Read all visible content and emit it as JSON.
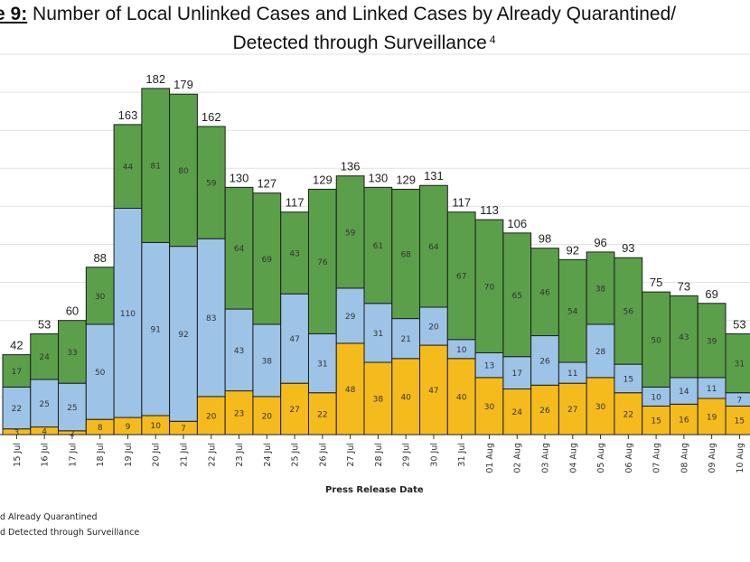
{
  "title": {
    "prefix": "e 9:",
    "line1": " Number of Local Unlinked Cases and Linked Cases by Already Quarantined/",
    "line2": "Detected through Surveillance",
    "footnote": "4"
  },
  "chart_data": {
    "type": "bar",
    "stacked": true,
    "xlabel": "Press Release Date",
    "ylabel": "",
    "ylim": [
      0,
      200
    ],
    "grid": true,
    "categories": [
      "15 Jul",
      "16 Jul",
      "17 Jul",
      "18 Jul",
      "19 Jul",
      "20 Jul",
      "21 Jul",
      "22 Jul",
      "23 Jul",
      "24 Jul",
      "25 Jul",
      "26 Jul",
      "27 Jul",
      "28 Jul",
      "29 Jul",
      "30 Jul",
      "31 Jul",
      "01 Aug",
      "02 Aug",
      "03 Aug",
      "04 Aug",
      "05 Aug",
      "06 Aug",
      "07 Aug",
      "08 Aug",
      "09 Aug",
      "10 Aug"
    ],
    "series": [
      {
        "color": "#f5bb1c",
        "values": [
          3,
          4,
          2,
          8,
          9,
          10,
          7,
          20,
          23,
          20,
          27,
          22,
          48,
          38,
          40,
          47,
          40,
          30,
          24,
          26,
          27,
          30,
          22,
          15,
          16,
          19,
          15
        ]
      },
      {
        "color": "#9dc3e6",
        "values": [
          22,
          25,
          25,
          50,
          110,
          91,
          92,
          83,
          43,
          38,
          47,
          31,
          29,
          31,
          21,
          20,
          10,
          13,
          17,
          26,
          11,
          28,
          15,
          10,
          14,
          11,
          7
        ]
      },
      {
        "color": "#5b9f4a",
        "values": [
          17,
          24,
          33,
          30,
          44,
          81,
          80,
          59,
          64,
          69,
          43,
          76,
          59,
          61,
          68,
          64,
          67,
          70,
          65,
          46,
          54,
          38,
          56,
          50,
          43,
          39,
          31
        ]
      }
    ],
    "totals": [
      42,
      53,
      60,
      88,
      163,
      182,
      179,
      162,
      130,
      127,
      117,
      129,
      136,
      130,
      129,
      131,
      117,
      113,
      106,
      98,
      92,
      96,
      93,
      75,
      73,
      69,
      53
    ],
    "legend": [
      "d Already Quarantined",
      "d Detected through Surveillance"
    ],
    "legend_position": "bottom-left"
  }
}
